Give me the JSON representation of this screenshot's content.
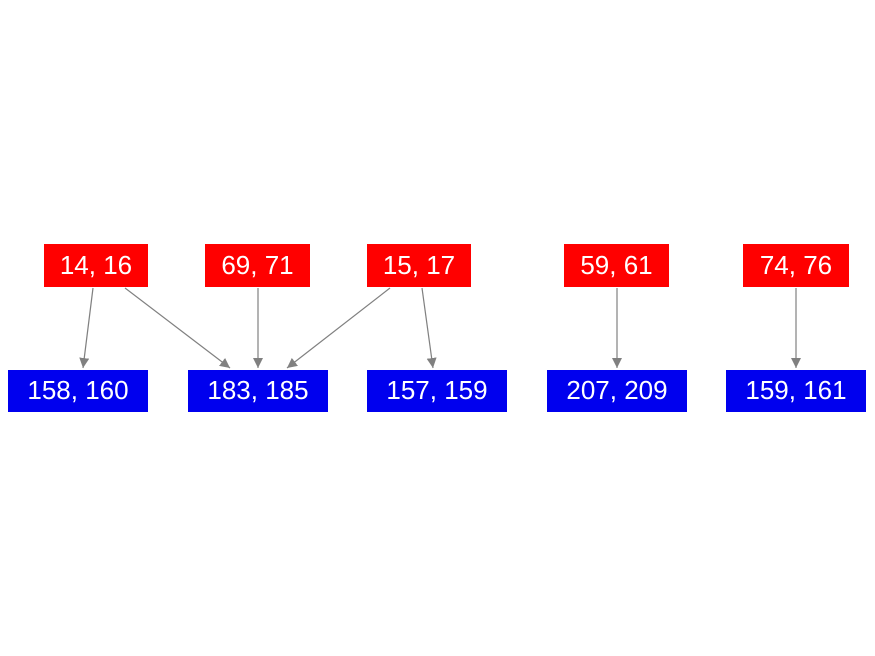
{
  "nodes": [
    {
      "label": "14, 16"
    },
    {
      "label": "69, 71"
    },
    {
      "label": "15, 17"
    },
    {
      "label": "59, 61"
    },
    {
      "label": "74, 76"
    },
    {
      "label": "158, 160"
    },
    {
      "label": "183, 185"
    },
    {
      "label": "157, 159"
    },
    {
      "label": "207, 209"
    },
    {
      "label": "159, 161"
    }
  ]
}
